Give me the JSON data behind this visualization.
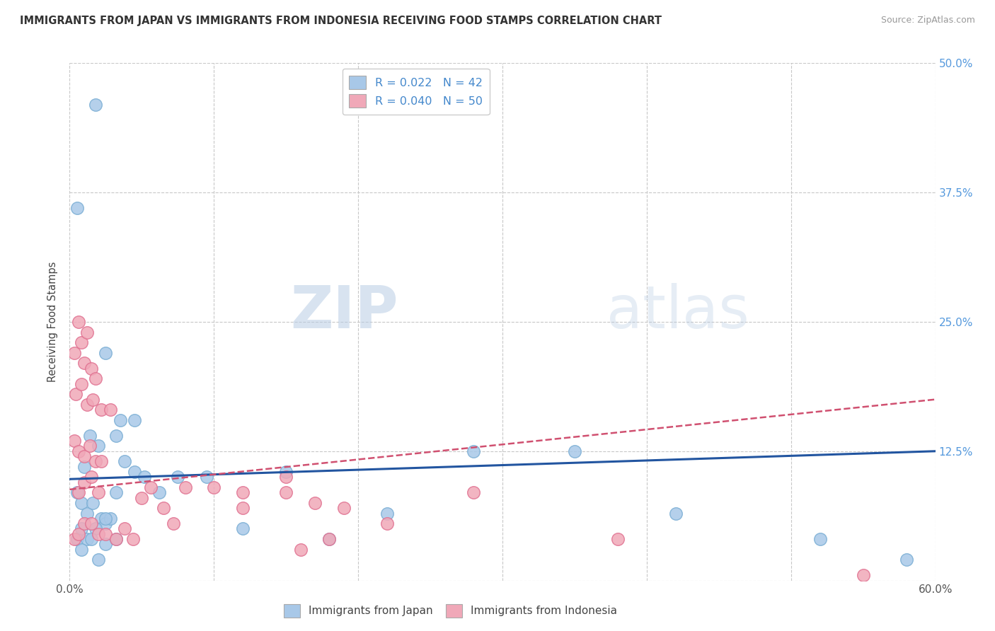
{
  "title": "IMMIGRANTS FROM JAPAN VS IMMIGRANTS FROM INDONESIA RECEIVING FOOD STAMPS CORRELATION CHART",
  "source": "Source: ZipAtlas.com",
  "ylabel": "Receiving Food Stamps",
  "xlim": [
    0.0,
    0.6
  ],
  "ylim": [
    0.0,
    0.5
  ],
  "xticks": [
    0.0,
    0.1,
    0.2,
    0.3,
    0.4,
    0.5,
    0.6
  ],
  "yticks": [
    0.0,
    0.125,
    0.25,
    0.375,
    0.5
  ],
  "yticklabels_right": [
    "",
    "12.5%",
    "25.0%",
    "37.5%",
    "50.0%"
  ],
  "background_color": "#ffffff",
  "grid_color": "#c8c8c8",
  "watermark_zip": "ZIP",
  "watermark_atlas": "atlas",
  "legend_japan_r": "R = 0.022",
  "legend_japan_n": "N = 42",
  "legend_indonesia_r": "R = 0.040",
  "legend_indonesia_n": "N = 50",
  "japan_color": "#a8c8e8",
  "japan_edge_color": "#7aaed4",
  "indonesia_color": "#f0a8b8",
  "indonesia_edge_color": "#e07090",
  "japan_line_color": "#2255a0",
  "indonesia_line_color": "#d05070",
  "japan_scatter_x": [
    0.018,
    0.005,
    0.01,
    0.014,
    0.02,
    0.005,
    0.008,
    0.012,
    0.016,
    0.022,
    0.025,
    0.028,
    0.032,
    0.005,
    0.008,
    0.012,
    0.018,
    0.025,
    0.032,
    0.008,
    0.015,
    0.02,
    0.025,
    0.032,
    0.038,
    0.045,
    0.052,
    0.062,
    0.075,
    0.095,
    0.12,
    0.15,
    0.18,
    0.22,
    0.28,
    0.35,
    0.42,
    0.52,
    0.58,
    0.025,
    0.035,
    0.045
  ],
  "japan_scatter_y": [
    0.46,
    0.36,
    0.11,
    0.14,
    0.13,
    0.085,
    0.075,
    0.065,
    0.075,
    0.06,
    0.055,
    0.06,
    0.14,
    0.04,
    0.05,
    0.04,
    0.05,
    0.06,
    0.085,
    0.03,
    0.04,
    0.02,
    0.035,
    0.04,
    0.115,
    0.105,
    0.1,
    0.085,
    0.1,
    0.1,
    0.05,
    0.105,
    0.04,
    0.065,
    0.125,
    0.125,
    0.065,
    0.04,
    0.02,
    0.22,
    0.155,
    0.155
  ],
  "indonesia_scatter_x": [
    0.003,
    0.006,
    0.008,
    0.01,
    0.012,
    0.015,
    0.018,
    0.003,
    0.006,
    0.01,
    0.014,
    0.018,
    0.022,
    0.006,
    0.01,
    0.015,
    0.02,
    0.004,
    0.008,
    0.012,
    0.016,
    0.022,
    0.028,
    0.003,
    0.006,
    0.01,
    0.015,
    0.02,
    0.025,
    0.032,
    0.038,
    0.044,
    0.05,
    0.056,
    0.065,
    0.072,
    0.08,
    0.1,
    0.12,
    0.15,
    0.16,
    0.18,
    0.12,
    0.15,
    0.17,
    0.19,
    0.22,
    0.28,
    0.38,
    0.55
  ],
  "indonesia_scatter_y": [
    0.22,
    0.25,
    0.23,
    0.21,
    0.24,
    0.205,
    0.195,
    0.135,
    0.125,
    0.12,
    0.13,
    0.115,
    0.115,
    0.085,
    0.095,
    0.1,
    0.085,
    0.18,
    0.19,
    0.17,
    0.175,
    0.165,
    0.165,
    0.04,
    0.045,
    0.055,
    0.055,
    0.045,
    0.045,
    0.04,
    0.05,
    0.04,
    0.08,
    0.09,
    0.07,
    0.055,
    0.09,
    0.09,
    0.07,
    0.1,
    0.03,
    0.04,
    0.085,
    0.085,
    0.075,
    0.07,
    0.055,
    0.085,
    0.04,
    0.005
  ],
  "japan_line_x": [
    0.0,
    0.6
  ],
  "japan_line_y": [
    0.098,
    0.125
  ],
  "indonesia_line_x": [
    0.0,
    0.6
  ],
  "indonesia_line_y": [
    0.088,
    0.175
  ],
  "legend_label_japan": "Immigrants from Japan",
  "legend_label_indonesia": "Immigrants from Indonesia"
}
